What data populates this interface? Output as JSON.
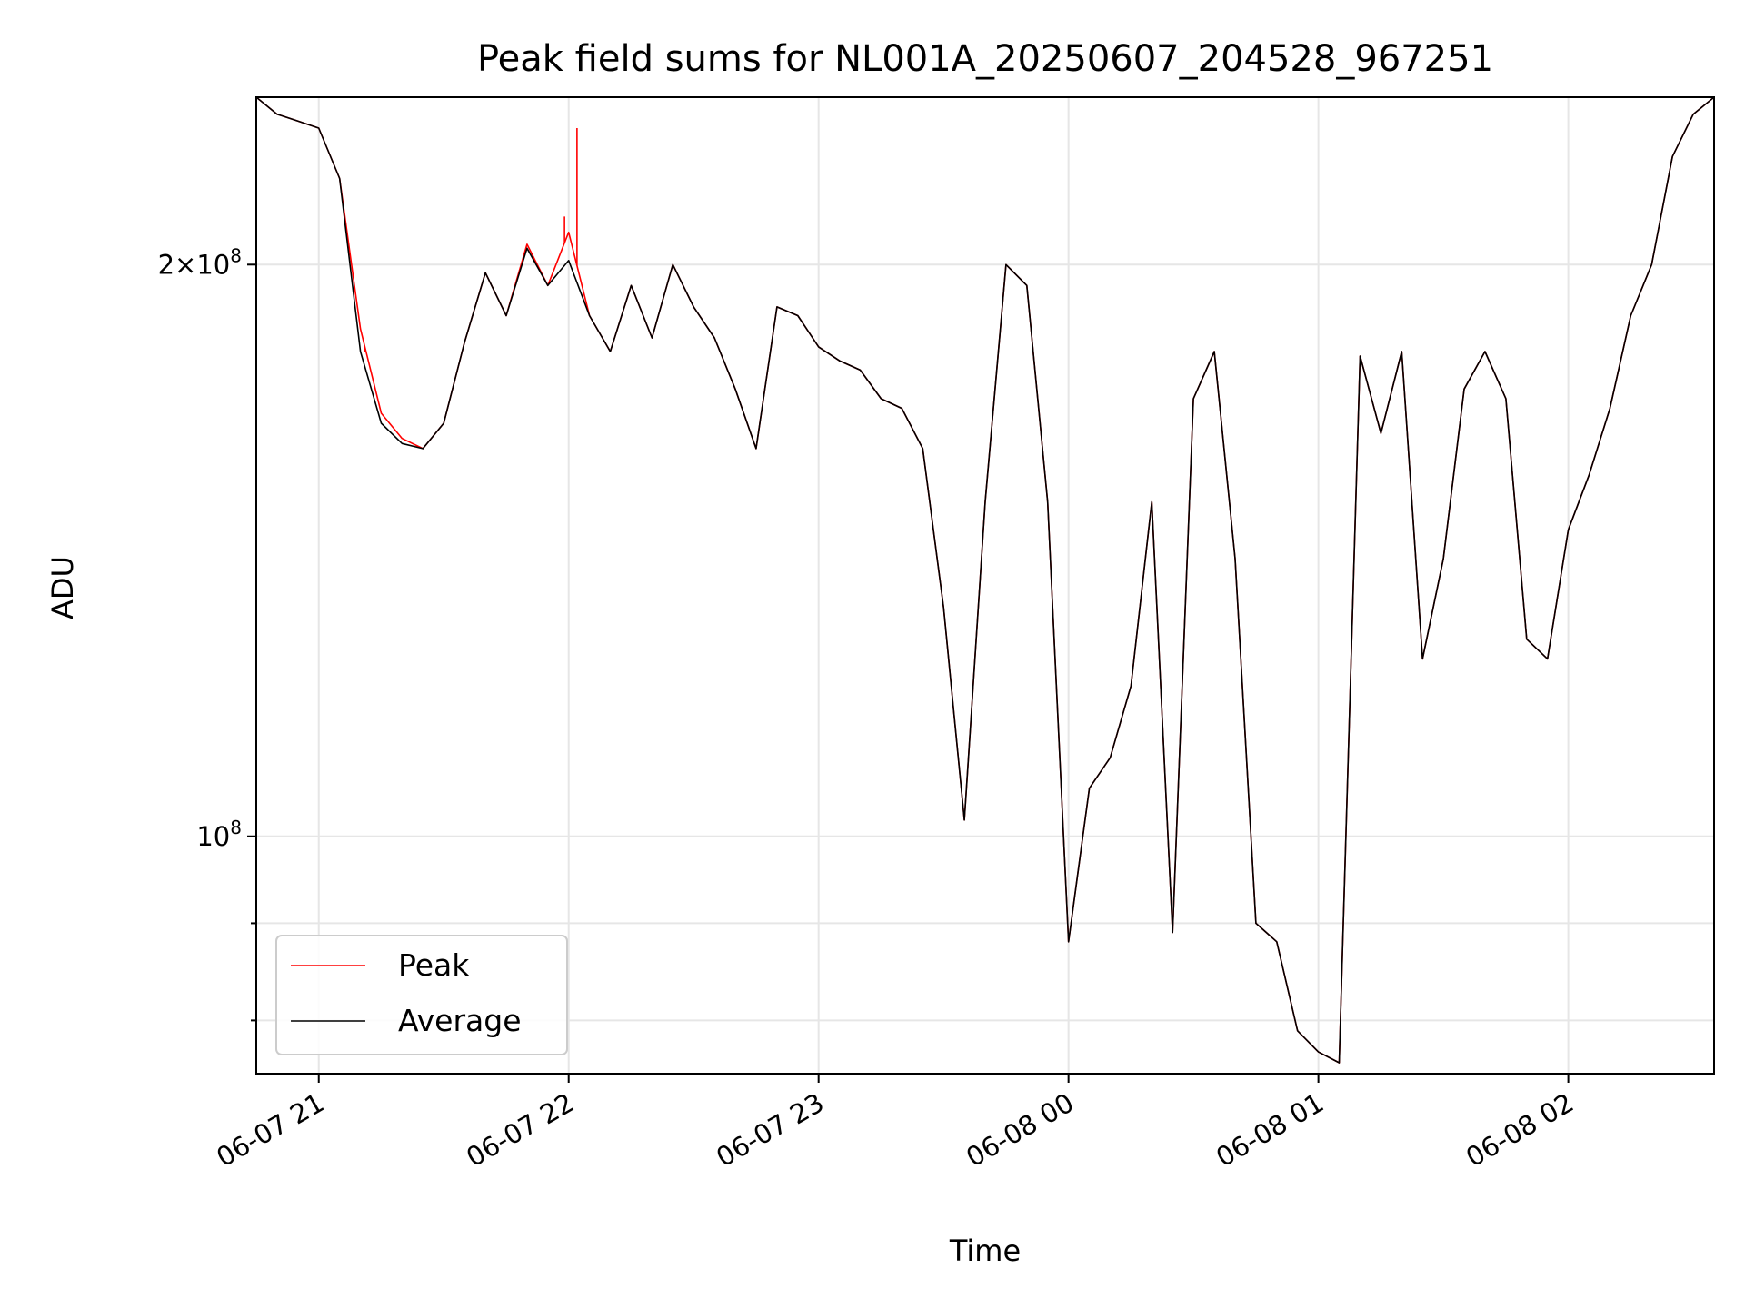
{
  "chart_data": {
    "type": "line",
    "title": "Peak field sums for NL001A_20250607_204528_967251",
    "xlabel": "Time",
    "ylabel": "ADU",
    "y_scale": "log",
    "grid": true,
    "legend_position": "lower-left",
    "xlim": [
      "2025-06-07 20:45",
      "2025-06-08 02:35"
    ],
    "ylim": [
      75000000,
      245000000
    ],
    "x_ticks": [
      {
        "value": "2025-06-07 21:00",
        "label": "06-07 21"
      },
      {
        "value": "2025-06-07 22:00",
        "label": "06-07 22"
      },
      {
        "value": "2025-06-07 23:00",
        "label": "06-07 23"
      },
      {
        "value": "2025-06-08 00:00",
        "label": "06-08 00"
      },
      {
        "value": "2025-06-08 01:00",
        "label": "06-08 01"
      },
      {
        "value": "2025-06-08 02:00",
        "label": "06-08 02"
      }
    ],
    "y_ticks": [
      {
        "value": 100000000,
        "label": "10^8",
        "major": true
      },
      {
        "value": 200000000,
        "label": "2×10^8",
        "major": true
      },
      {
        "value": 80000000,
        "label": "",
        "major": false
      },
      {
        "value": 90000000,
        "label": "",
        "major": false
      }
    ],
    "x": [
      "2025-06-07 20:45",
      "2025-06-07 20:50",
      "2025-06-07 20:55",
      "2025-06-07 21:00",
      "2025-06-07 21:05",
      "2025-06-07 21:10",
      "2025-06-07 21:15",
      "2025-06-07 21:20",
      "2025-06-07 21:25",
      "2025-06-07 21:30",
      "2025-06-07 21:35",
      "2025-06-07 21:40",
      "2025-06-07 21:45",
      "2025-06-07 21:50",
      "2025-06-07 21:55",
      "2025-06-07 22:00",
      "2025-06-07 22:05",
      "2025-06-07 22:10",
      "2025-06-07 22:15",
      "2025-06-07 22:20",
      "2025-06-07 22:25",
      "2025-06-07 22:30",
      "2025-06-07 22:35",
      "2025-06-07 22:40",
      "2025-06-07 22:45",
      "2025-06-07 22:50",
      "2025-06-07 22:55",
      "2025-06-07 23:00",
      "2025-06-07 23:05",
      "2025-06-07 23:10",
      "2025-06-07 23:15",
      "2025-06-07 23:20",
      "2025-06-07 23:25",
      "2025-06-07 23:30",
      "2025-06-07 23:35",
      "2025-06-07 23:40",
      "2025-06-07 23:45",
      "2025-06-07 23:50",
      "2025-06-07 23:55",
      "2025-06-08 00:00",
      "2025-06-08 00:05",
      "2025-06-08 00:10",
      "2025-06-08 00:15",
      "2025-06-08 00:20",
      "2025-06-08 00:25",
      "2025-06-08 00:30",
      "2025-06-08 00:35",
      "2025-06-08 00:40",
      "2025-06-08 00:45",
      "2025-06-08 00:50",
      "2025-06-08 00:55",
      "2025-06-08 01:00",
      "2025-06-08 01:05",
      "2025-06-08 01:10",
      "2025-06-08 01:15",
      "2025-06-08 01:20",
      "2025-06-08 01:25",
      "2025-06-08 01:30",
      "2025-06-08 01:35",
      "2025-06-08 01:40",
      "2025-06-08 01:45",
      "2025-06-08 01:50",
      "2025-06-08 01:55",
      "2025-06-08 02:00",
      "2025-06-08 02:05",
      "2025-06-08 02:10",
      "2025-06-08 02:15",
      "2025-06-08 02:20",
      "2025-06-08 02:25",
      "2025-06-08 02:30",
      "2025-06-08 02:35"
    ],
    "series": [
      {
        "name": "Peak",
        "color": "#ff0000",
        "values": [
          245000000,
          240000000,
          238000000,
          236000000,
          222000000,
          185000000,
          167000000,
          162000000,
          160000000,
          165000000,
          182000000,
          198000000,
          188000000,
          205000000,
          195000000,
          208000000,
          188000000,
          180000000,
          195000000,
          183000000,
          200000000,
          190000000,
          183000000,
          172000000,
          160000000,
          190000000,
          188000000,
          181000000,
          178000000,
          176000000,
          170000000,
          168000000,
          160000000,
          132000000,
          102000000,
          150000000,
          200000000,
          195000000,
          150000000,
          88000000,
          106000000,
          110000000,
          120000000,
          150000000,
          89000000,
          170000000,
          180000000,
          140000000,
          90000000,
          88000000,
          79000000,
          77000000,
          76000000,
          179000000,
          163000000,
          180000000,
          124000000,
          140000000,
          172000000,
          180000000,
          170000000,
          127000000,
          124000000,
          145000000,
          155000000,
          168000000,
          188000000,
          200000000,
          228000000,
          240000000,
          245000000
        ]
      },
      {
        "name": "Average",
        "color": "#000000",
        "values": [
          245000000,
          240000000,
          238000000,
          236000000,
          222000000,
          180000000,
          165000000,
          161000000,
          160000000,
          165000000,
          182000000,
          198000000,
          188000000,
          204000000,
          195000000,
          201000000,
          188000000,
          180000000,
          195000000,
          183000000,
          200000000,
          190000000,
          183000000,
          172000000,
          160000000,
          190000000,
          188000000,
          181000000,
          178000000,
          176000000,
          170000000,
          168000000,
          160000000,
          132000000,
          102000000,
          150000000,
          200000000,
          195000000,
          150000000,
          88000000,
          106000000,
          110000000,
          120000000,
          150000000,
          89000000,
          170000000,
          180000000,
          140000000,
          90000000,
          88000000,
          79000000,
          77000000,
          76000000,
          179000000,
          163000000,
          180000000,
          124000000,
          140000000,
          172000000,
          180000000,
          170000000,
          127000000,
          124000000,
          145000000,
          155000000,
          168000000,
          188000000,
          200000000,
          228000000,
          240000000,
          245000000
        ]
      }
    ],
    "spikes": [
      {
        "series": "Peak",
        "x": "2025-06-07 21:11",
        "y": 180000000
      },
      {
        "series": "Peak",
        "x": "2025-06-07 21:59",
        "y": 212000000
      },
      {
        "series": "Peak",
        "x": "2025-06-07 22:02",
        "y": 236000000
      }
    ]
  }
}
